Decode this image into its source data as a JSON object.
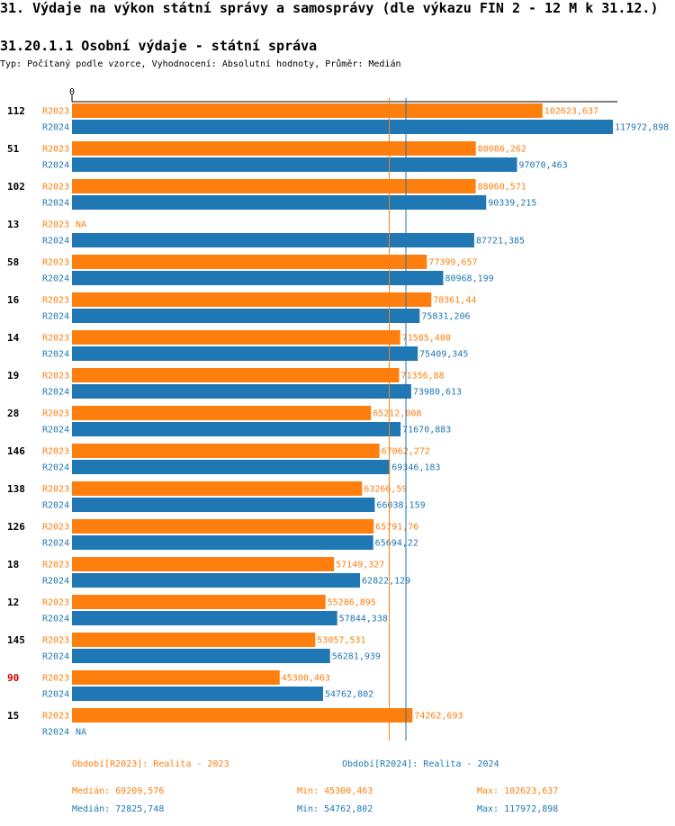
{
  "header": {
    "title": "31. Výdaje na výkon státní správy a samosprávy (dle výkazu FIN 2 - 12 M k 31.12.)",
    "subtitle": "31.20.1.1 Osobní výdaje - státní správa",
    "description": "Typ: Počítaný podle vzorce, Vyhodnocení: Absolutní hodnoty, Průměr: Medián"
  },
  "colors": {
    "r2023": "#ff7f0e",
    "r2024": "#1f77b4",
    "highlight_category": "#cc0000"
  },
  "chart_data": {
    "type": "bar",
    "orientation": "horizontal",
    "xlim": [
      0,
      117972.898
    ],
    "x_tick_labels": [
      "0"
    ],
    "highlight_category": "90",
    "categories": [
      "112",
      "51",
      "102",
      "13",
      "58",
      "16",
      "14",
      "19",
      "28",
      "146",
      "138",
      "126",
      "18",
      "12",
      "145",
      "90",
      "15"
    ],
    "series": [
      {
        "name": "R2023",
        "values": [
          102623.637,
          88086.262,
          88060.571,
          null,
          77399.657,
          78361.44,
          71585.408,
          71356.88,
          65212.008,
          67062.272,
          63266.59,
          65791.76,
          57149.327,
          55286.895,
          53057.531,
          45300.463,
          74262.693
        ],
        "labels": [
          "102623,637",
          "88086,262",
          "88060,571",
          "NA",
          "77399,657",
          "78361,44",
          "71585,408",
          "71356,88",
          "65212,008",
          "67062,272",
          "63266,59",
          "65791,76",
          "57149,327",
          "55286,895",
          "53057,531",
          "45300,463",
          "74262,693"
        ]
      },
      {
        "name": "R2024",
        "values": [
          117972.898,
          97070.463,
          90339.215,
          87721.385,
          80968.199,
          75831.206,
          75409.345,
          73980.613,
          71670.883,
          69346.183,
          66038.159,
          65694.22,
          62822.129,
          57844.338,
          56281.939,
          54762.802,
          null
        ],
        "labels": [
          "117972,898",
          "97070,463",
          "90339,215",
          "87721,385",
          "80968,199",
          "75831,206",
          "75409,345",
          "73980,613",
          "71670,883",
          "69346,183",
          "66038,159",
          "65694,22",
          "62822,129",
          "57844,338",
          "56281,939",
          "54762,802",
          "NA"
        ]
      }
    ],
    "medians": {
      "R2023": 69209.576,
      "R2024": 72825.748
    }
  },
  "footer": {
    "legend_2023": "Období[R2023]: Realita - 2023",
    "legend_2024": "Období[R2024]: Realita - 2024",
    "median_2023": "Medián: 69209,576",
    "min_2023": "Min: 45300,463",
    "max_2023": "Max: 102623,637",
    "median_2024": "Medián: 72825,748",
    "min_2024": "Min: 54762,802",
    "max_2024": "Max: 117972,898"
  }
}
